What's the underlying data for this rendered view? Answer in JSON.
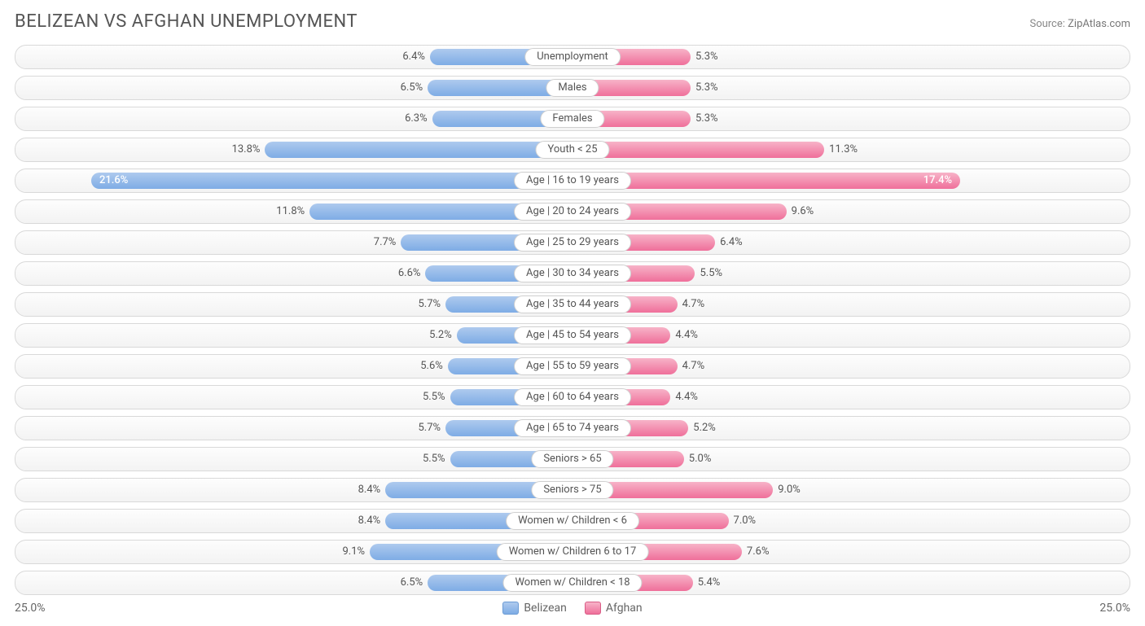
{
  "title": "BELIZEAN VS AFGHAN UNEMPLOYMENT",
  "source_prefix": "Source: ",
  "source_site": "ZipAtlas.com",
  "axis_max_pct": 25.0,
  "axis_left_label": "25.0%",
  "axis_right_label": "25.0%",
  "legend": {
    "left_label": "Belizean",
    "right_label": "Afghan"
  },
  "colors": {
    "left_bar_top": "#aecaee",
    "left_bar_bottom": "#7eace5",
    "right_bar_top": "#f7b3c8",
    "right_bar_bottom": "#ef6f9a",
    "track_border": "#d9d9d9",
    "track_bg_top": "#fdfdfd",
    "track_bg_bottom": "#f3f3f3",
    "text": "#555555",
    "pill_bg": "#ffffff",
    "pill_border": "#d0d0d0"
  },
  "rows": [
    {
      "category": "Unemployment",
      "left_value": 6.4,
      "left_label": "6.4%",
      "right_value": 5.3,
      "right_label": "5.3%"
    },
    {
      "category": "Males",
      "left_value": 6.5,
      "left_label": "6.5%",
      "right_value": 5.3,
      "right_label": "5.3%"
    },
    {
      "category": "Females",
      "left_value": 6.3,
      "left_label": "6.3%",
      "right_value": 5.3,
      "right_label": "5.3%"
    },
    {
      "category": "Youth < 25",
      "left_value": 13.8,
      "left_label": "13.8%",
      "right_value": 11.3,
      "right_label": "11.3%"
    },
    {
      "category": "Age | 16 to 19 years",
      "left_value": 21.6,
      "left_label": "21.6%",
      "right_value": 17.4,
      "right_label": "17.4%"
    },
    {
      "category": "Age | 20 to 24 years",
      "left_value": 11.8,
      "left_label": "11.8%",
      "right_value": 9.6,
      "right_label": "9.6%"
    },
    {
      "category": "Age | 25 to 29 years",
      "left_value": 7.7,
      "left_label": "7.7%",
      "right_value": 6.4,
      "right_label": "6.4%"
    },
    {
      "category": "Age | 30 to 34 years",
      "left_value": 6.6,
      "left_label": "6.6%",
      "right_value": 5.5,
      "right_label": "5.5%"
    },
    {
      "category": "Age | 35 to 44 years",
      "left_value": 5.7,
      "left_label": "5.7%",
      "right_value": 4.7,
      "right_label": "4.7%"
    },
    {
      "category": "Age | 45 to 54 years",
      "left_value": 5.2,
      "left_label": "5.2%",
      "right_value": 4.4,
      "right_label": "4.4%"
    },
    {
      "category": "Age | 55 to 59 years",
      "left_value": 5.6,
      "left_label": "5.6%",
      "right_value": 4.7,
      "right_label": "4.7%"
    },
    {
      "category": "Age | 60 to 64 years",
      "left_value": 5.5,
      "left_label": "5.5%",
      "right_value": 4.4,
      "right_label": "4.4%"
    },
    {
      "category": "Age | 65 to 74 years",
      "left_value": 5.7,
      "left_label": "5.7%",
      "right_value": 5.2,
      "right_label": "5.2%"
    },
    {
      "category": "Seniors > 65",
      "left_value": 5.5,
      "left_label": "5.5%",
      "right_value": 5.0,
      "right_label": "5.0%"
    },
    {
      "category": "Seniors > 75",
      "left_value": 8.4,
      "left_label": "8.4%",
      "right_value": 9.0,
      "right_label": "9.0%"
    },
    {
      "category": "Women w/ Children < 6",
      "left_value": 8.4,
      "left_label": "8.4%",
      "right_value": 7.0,
      "right_label": "7.0%"
    },
    {
      "category": "Women w/ Children 6 to 17",
      "left_value": 9.1,
      "left_label": "9.1%",
      "right_value": 7.6,
      "right_label": "7.6%"
    },
    {
      "category": "Women w/ Children < 18",
      "left_value": 6.5,
      "left_label": "6.5%",
      "right_value": 5.4,
      "right_label": "5.4%"
    }
  ]
}
